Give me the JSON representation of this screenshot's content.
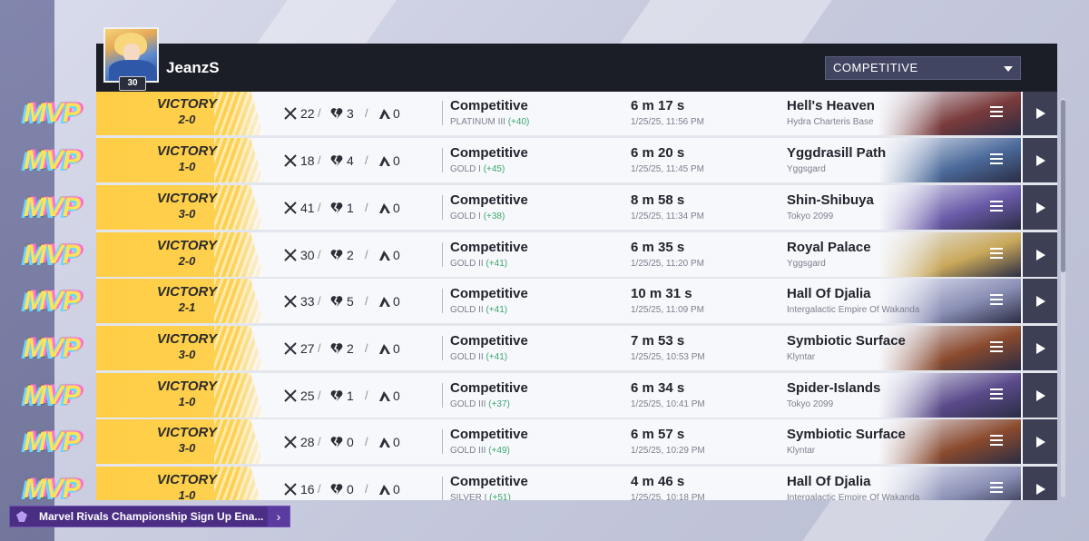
{
  "header": {
    "username": "JeanzS",
    "level": "30",
    "mode_filter": "COMPETITIVE"
  },
  "labels": {
    "mvp": "MVP"
  },
  "matches": [
    {
      "result": "VICTORY",
      "score": "2-0",
      "kills": "22",
      "deaths": "3",
      "assists": "0",
      "mode": "Competitive",
      "rank": "PLATINUM III",
      "delta": "(+40)",
      "duration": "6 m 17 s",
      "time": "1/25/25, 11:56 PM",
      "map": "Hell's Heaven",
      "region": "Hydra Charteris Base"
    },
    {
      "result": "VICTORY",
      "score": "1-0",
      "kills": "18",
      "deaths": "4",
      "assists": "0",
      "mode": "Competitive",
      "rank": "GOLD I",
      "delta": "(+45)",
      "duration": "6 m 20 s",
      "time": "1/25/25, 11:45 PM",
      "map": "Yggdrasill Path",
      "region": "Yggsgard"
    },
    {
      "result": "VICTORY",
      "score": "3-0",
      "kills": "41",
      "deaths": "1",
      "assists": "0",
      "mode": "Competitive",
      "rank": "GOLD I",
      "delta": "(+38)",
      "duration": "8 m 58 s",
      "time": "1/25/25, 11:34 PM",
      "map": "Shin-Shibuya",
      "region": "Tokyo 2099"
    },
    {
      "result": "VICTORY",
      "score": "2-0",
      "kills": "30",
      "deaths": "2",
      "assists": "0",
      "mode": "Competitive",
      "rank": "GOLD II",
      "delta": "(+41)",
      "duration": "6 m 35 s",
      "time": "1/25/25, 11:20 PM",
      "map": "Royal Palace",
      "region": "Yggsgard"
    },
    {
      "result": "VICTORY",
      "score": "2-1",
      "kills": "33",
      "deaths": "5",
      "assists": "0",
      "mode": "Competitive",
      "rank": "GOLD II",
      "delta": "(+41)",
      "duration": "10 m 31 s",
      "time": "1/25/25, 11:09 PM",
      "map": "Hall Of Djalia",
      "region": "Intergalactic Empire Of Wakanda"
    },
    {
      "result": "VICTORY",
      "score": "3-0",
      "kills": "27",
      "deaths": "2",
      "assists": "0",
      "mode": "Competitive",
      "rank": "GOLD II",
      "delta": "(+41)",
      "duration": "7 m 53 s",
      "time": "1/25/25, 10:53 PM",
      "map": "Symbiotic Surface",
      "region": "Klyntar"
    },
    {
      "result": "VICTORY",
      "score": "1-0",
      "kills": "25",
      "deaths": "1",
      "assists": "0",
      "mode": "Competitive",
      "rank": "GOLD III",
      "delta": "(+37)",
      "duration": "6 m 34 s",
      "time": "1/25/25, 10:41 PM",
      "map": "Spider-Islands",
      "region": "Tokyo 2099"
    },
    {
      "result": "VICTORY",
      "score": "3-0",
      "kills": "28",
      "deaths": "0",
      "assists": "0",
      "mode": "Competitive",
      "rank": "GOLD III",
      "delta": "(+49)",
      "duration": "6 m 57 s",
      "time": "1/25/25, 10:29 PM",
      "map": "Symbiotic Surface",
      "region": "Klyntar"
    },
    {
      "result": "VICTORY",
      "score": "1-0",
      "kills": "16",
      "deaths": "0",
      "assists": "0",
      "mode": "Competitive",
      "rank": "SILVER I",
      "delta": "(+51)",
      "duration": "4 m 46 s",
      "time": "1/25/25, 10:18 PM",
      "map": "Hall Of Djalia",
      "region": "Intergalactic Empire Of Wakanda"
    }
  ],
  "map_art_colors": [
    "#7a3b3b",
    "#4b6a9a",
    "#6a5aa8",
    "#c9a85a",
    "#8a8fb5",
    "#8a4a2e",
    "#5b4a8a",
    "#8a4a2e",
    "#8a8fb5"
  ],
  "icons": {
    "kills": "crossed-swords-icon",
    "deaths": "broken-heart-icon",
    "assists": "hands-icon",
    "menu": "menu-icon",
    "play": "play-icon"
  },
  "notification": {
    "text": "Marvel Rivals Championship Sign Up Ena..."
  }
}
